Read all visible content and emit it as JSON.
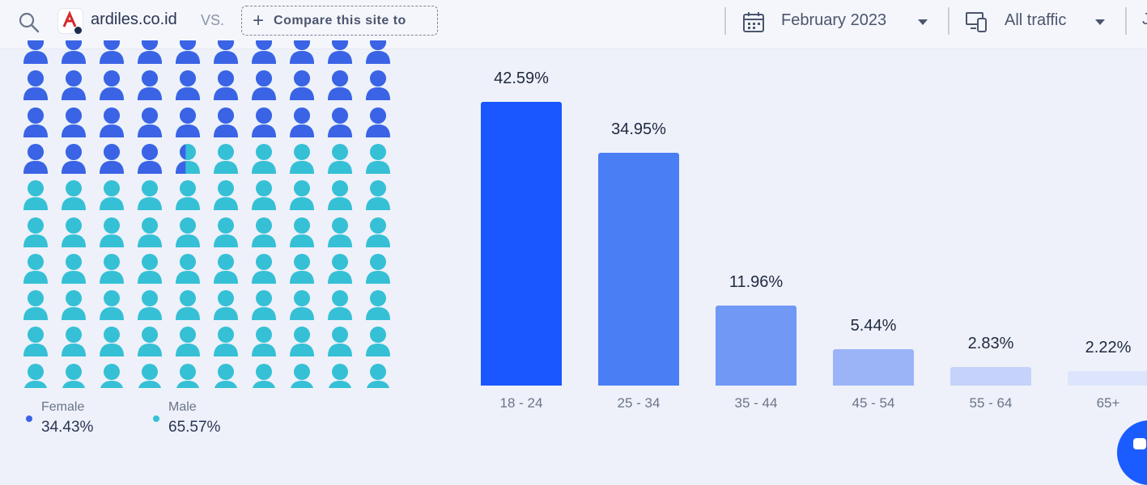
{
  "header": {
    "site_name": "ardiles.co.id",
    "vs_label": "VS.",
    "compare_label": "Compare this site to",
    "date_label": "February 2023",
    "traffic_label": "All traffic",
    "truncated_label": "J"
  },
  "gender": {
    "female_label": "Female",
    "female_value": "34.43%",
    "male_label": "Male",
    "male_value": "65.57%",
    "female_fraction": 0.3443,
    "female_color": "#3b63e6",
    "male_color": "#35c0d6"
  },
  "chart_data": {
    "type": "bar",
    "categories": [
      "18 - 24",
      "25 - 34",
      "35 - 44",
      "45 - 54",
      "55 - 64",
      "65+"
    ],
    "values": [
      42.59,
      34.95,
      11.96,
      5.44,
      2.83,
      2.22
    ],
    "labels": [
      "42.59%",
      "34.95%",
      "11.96%",
      "5.44%",
      "2.83%",
      "2.22%"
    ],
    "colors": [
      "#1a57ff",
      "#4a7ef5",
      "#7298f6",
      "#9bb4f7",
      "#c5d3fa",
      "#dce5fb"
    ],
    "ylim": [
      0,
      42.59
    ],
    "grid": false,
    "legend": "none"
  },
  "icons": {
    "search": "search-icon",
    "calendar": "calendar-icon",
    "traffic": "devices-icon",
    "chat": "chat-icon"
  }
}
